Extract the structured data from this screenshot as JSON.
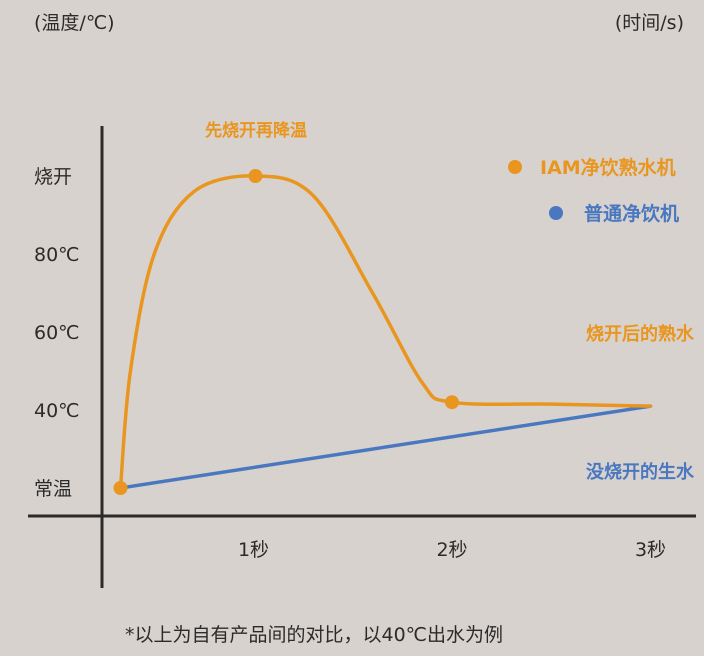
{
  "chart_data": {
    "type": "line",
    "ylabel": "(温度/℃)",
    "xlabel": "(时间/s)",
    "x_ticks": [
      {
        "value": 1,
        "label": "1秒"
      },
      {
        "value": 2,
        "label": "2秒"
      },
      {
        "value": 3,
        "label": "3秒"
      }
    ],
    "y_ticks": [
      {
        "value": 20,
        "label": "常温"
      },
      {
        "value": 40,
        "label": "40℃"
      },
      {
        "value": 60,
        "label": "60℃"
      },
      {
        "value": 80,
        "label": "80℃"
      },
      {
        "value": 100,
        "label": "烧开"
      }
    ],
    "xlim": [
      -0.25,
      3.2
    ],
    "ylim": [
      10,
      115
    ],
    "series": [
      {
        "name": "IAM净饮熟水机",
        "color": "#e8961f",
        "x": [
          0.33,
          0.38,
          0.5,
          0.7,
          1.01,
          1.3,
          1.6,
          1.85,
          2.0,
          2.5,
          3.0
        ],
        "y": [
          20,
          50,
          80,
          96,
          100,
          95,
          70,
          47,
          42,
          41.5,
          41
        ],
        "markers": [
          0,
          4,
          8
        ]
      },
      {
        "name": "普通净饮机",
        "color": "#4a78c0",
        "x": [
          0.33,
          3.0
        ],
        "y": [
          20,
          41
        ],
        "markers": []
      }
    ],
    "annotations": [
      {
        "text": "先烧开再降温",
        "color": "#e8961f"
      },
      {
        "text": "烧开后的熟水",
        "color": "#e8961f"
      },
      {
        "text": "没烧开的生水",
        "color": "#4a78c0"
      }
    ],
    "legend": "top-right",
    "footnote": "*以上为自有产品间的对比，以40℃出水为例"
  }
}
